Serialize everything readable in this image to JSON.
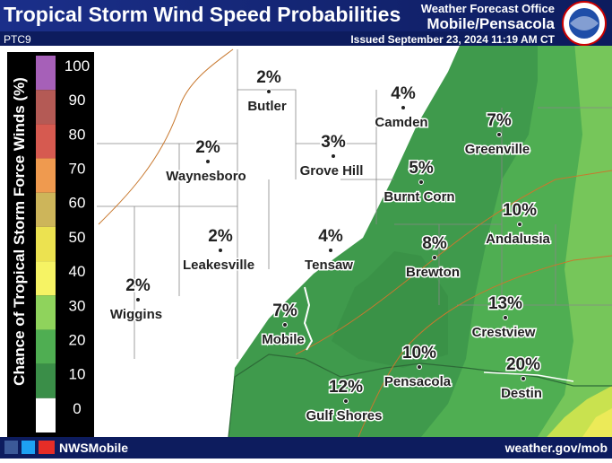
{
  "header": {
    "title": "Tropical Storm Wind Speed Probabilities",
    "office": "Weather Forecast Office",
    "office_name": "Mobile/Pensacola",
    "product": "PTC9",
    "issued": "Issued September 23, 2024 11:19 AM CT"
  },
  "legend": {
    "title": "Chance of Tropical Storm Force Winds (%)",
    "ticks": [
      100,
      90,
      80,
      70,
      60,
      50,
      40,
      30,
      20,
      10,
      0
    ]
  },
  "cities": [
    {
      "name": "Butler",
      "label": "2%"
    },
    {
      "name": "Camden",
      "label": "4%"
    },
    {
      "name": "Greenville",
      "label": "7%"
    },
    {
      "name": "Waynesboro",
      "label": "2%"
    },
    {
      "name": "Grove Hill",
      "label": "3%"
    },
    {
      "name": "Burnt Corn",
      "label": "5%"
    },
    {
      "name": "Andalusia",
      "label": "10%"
    },
    {
      "name": "Leakesville",
      "label": "2%"
    },
    {
      "name": "Tensaw",
      "label": "4%"
    },
    {
      "name": "Brewton",
      "label": "8%"
    },
    {
      "name": "Wiggins",
      "label": "2%"
    },
    {
      "name": "Mobile",
      "label": "7%"
    },
    {
      "name": "Crestview",
      "label": "13%"
    },
    {
      "name": "Pensacola",
      "label": "10%"
    },
    {
      "name": "Destin",
      "label": "20%"
    },
    {
      "name": "Gulf Shores",
      "label": "12%"
    }
  ],
  "footer": {
    "social": "NWSMobile",
    "url": "weather.gov/mob"
  }
}
